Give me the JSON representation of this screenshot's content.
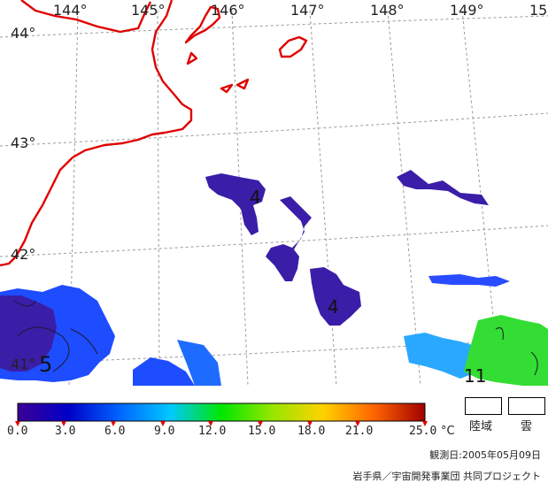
{
  "map": {
    "lon_labels": [
      "144°",
      "145°",
      "146°",
      "147°",
      "148°",
      "149°",
      "15"
    ],
    "lat_labels": [
      "44°",
      "43°",
      "42°",
      "41°"
    ],
    "contour_labels": [
      "4",
      "4",
      "5",
      "11"
    ],
    "colors": {
      "coast": "#e00000",
      "grid": "#999999",
      "sst_cold": "#3a1ea8",
      "sst_blue": "#1e4cff",
      "sst_cyan": "#2aa8ff",
      "sst_green": "#33dd33"
    }
  },
  "legend": {
    "ticks": [
      "0.0",
      "3.0",
      "6.0",
      "9.0",
      "12.0",
      "15.0",
      "18.0",
      "21.0",
      "25.0"
    ],
    "unit": "°C",
    "land_label": "陸域",
    "cloud_label": "雲",
    "gradient": [
      "#3c0096",
      "#0000c8",
      "#0064ff",
      "#00c8ff",
      "#00e600",
      "#96e600",
      "#ffd200",
      "#ff6400",
      "#a00000"
    ]
  },
  "footer": {
    "date": "観測日:2005年05月09日",
    "credit": "岩手県／宇宙開発事業団 共同プロジェクト"
  }
}
